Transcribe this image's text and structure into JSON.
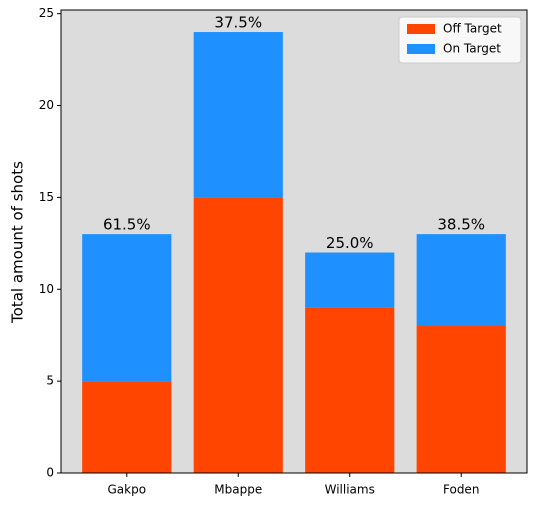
{
  "chart_data": {
    "type": "stacked_bar",
    "categories": [
      "Gakpo",
      "Mbappe",
      "Williams",
      "Foden"
    ],
    "series": [
      {
        "name": "Off Target",
        "color": "#ff4500",
        "values": [
          5,
          15,
          9,
          8
        ]
      },
      {
        "name": "On Target",
        "color": "#1e90ff",
        "values": [
          8,
          9,
          3,
          5
        ]
      }
    ],
    "annotations": [
      "61.5%",
      "37.5%",
      "25.0%",
      "38.5%"
    ],
    "ylabel": "Total amount of shots",
    "ylim": [
      0,
      25.2
    ],
    "yticks": [
      0,
      5,
      10,
      15,
      20,
      25
    ],
    "background": "#dcdcdc",
    "legend": "upper right"
  }
}
